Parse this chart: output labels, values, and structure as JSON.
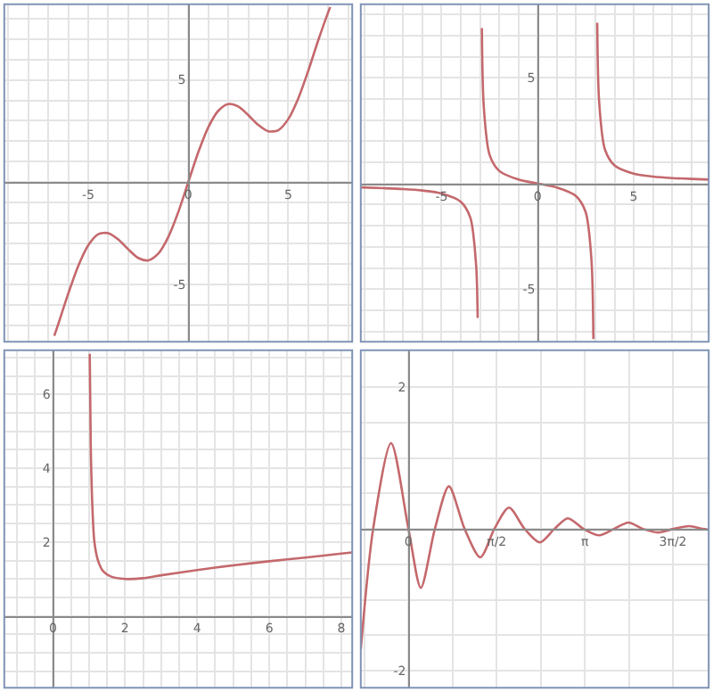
{
  "chart_data": [
    {
      "type": "line",
      "grid": true,
      "xlim": [
        -9.2,
        8.2
      ],
      "ylim": [
        -7.8,
        8.7
      ],
      "xticks": [
        {
          "value": -9,
          "label": null
        },
        {
          "value": -8,
          "label": null
        },
        {
          "value": -7,
          "label": null
        },
        {
          "value": -6,
          "label": null
        },
        -5,
        {
          "value": -4,
          "label": null
        },
        {
          "value": -3,
          "label": null
        },
        {
          "value": -2,
          "label": null
        },
        {
          "value": -1,
          "label": null
        },
        0,
        {
          "value": 1,
          "label": null
        },
        {
          "value": 2,
          "label": null
        },
        {
          "value": 3,
          "label": null
        },
        {
          "value": 4,
          "label": null
        },
        5,
        {
          "value": 6,
          "label": null
        },
        {
          "value": 7,
          "label": null
        },
        {
          "value": 8,
          "label": null
        }
      ],
      "yticks": [
        {
          "value": -7,
          "label": null
        },
        {
          "value": -6,
          "label": null
        },
        -5,
        {
          "value": -4,
          "label": null
        },
        {
          "value": -3,
          "label": null
        },
        {
          "value": -2,
          "label": null
        },
        {
          "value": -1,
          "label": null
        },
        {
          "value": 0,
          "label": null
        },
        {
          "value": 1,
          "label": null
        },
        {
          "value": 2,
          "label": null
        },
        {
          "value": 3,
          "label": null
        },
        {
          "value": 4,
          "label": null
        },
        5,
        {
          "value": 6,
          "label": null
        },
        {
          "value": 7,
          "label": null
        },
        {
          "value": 8,
          "label": null
        }
      ],
      "series": [
        {
          "color": "#c4686c",
          "x": [
            -6.7,
            -6.5,
            -6,
            -5.5,
            -5,
            -4.5,
            -4,
            -3.5,
            -3,
            -2.5,
            -2,
            -1.5,
            -1,
            -0.5,
            0,
            0.5,
            1,
            1.5,
            2,
            2.5,
            3,
            3.5,
            4,
            4.5,
            5,
            5.5,
            6,
            6.5,
            7,
            7.1
          ],
          "values": [
            -7.51,
            -6.93,
            -5.44,
            -4.09,
            -3.08,
            -2.54,
            -2.49,
            -2.8,
            -3.28,
            -3.7,
            -3.82,
            -3.49,
            -2.68,
            -1.46,
            0,
            1.46,
            2.68,
            3.49,
            3.82,
            3.7,
            3.28,
            2.8,
            2.49,
            2.54,
            3.08,
            4.09,
            5.44,
            6.93,
            8.31,
            8.56
          ]
        }
      ]
    },
    {
      "type": "line",
      "grid": true,
      "xlim": [
        -9.2,
        8.9
      ],
      "ylim": [
        -7.5,
        8.5
      ],
      "xticks": [
        {
          "value": -9,
          "label": null
        },
        {
          "value": -8,
          "label": null
        },
        {
          "value": -7,
          "label": null
        },
        {
          "value": -6,
          "label": null
        },
        -5,
        {
          "value": -4,
          "label": null
        },
        {
          "value": -3,
          "label": null
        },
        {
          "value": -2,
          "label": null
        },
        {
          "value": -1,
          "label": null
        },
        0,
        {
          "value": 1,
          "label": null
        },
        {
          "value": 2,
          "label": null
        },
        {
          "value": 3,
          "label": null
        },
        {
          "value": 4,
          "label": null
        },
        5,
        {
          "value": 6,
          "label": null
        },
        {
          "value": 7,
          "label": null
        },
        {
          "value": 8,
          "label": null
        }
      ],
      "yticks": [
        {
          "value": -7,
          "label": null
        },
        {
          "value": -6,
          "label": null
        },
        -5,
        {
          "value": -4,
          "label": null
        },
        {
          "value": -3,
          "label": null
        },
        {
          "value": -2,
          "label": null
        },
        {
          "value": -1,
          "label": null
        },
        {
          "value": 0,
          "label": null
        },
        {
          "value": 1,
          "label": null
        },
        {
          "value": 2,
          "label": null
        },
        {
          "value": 3,
          "label": null
        },
        {
          "value": 4,
          "label": null
        },
        5,
        {
          "value": 6,
          "label": null
        },
        {
          "value": 7,
          "label": null
        },
        {
          "value": 8,
          "label": null
        }
      ],
      "series": [
        {
          "color": "#c4686c",
          "x": [
            -9.2,
            -8,
            -7,
            -6,
            -5,
            -4,
            -3.5,
            -3.2,
            -3.12,
            -3.0,
            -2.9,
            -2.8,
            -2.5,
            -2,
            -1,
            0,
            1,
            2,
            2.5,
            2.8,
            2.9,
            3.0,
            3.1,
            3.2,
            3.5,
            4,
            5,
            6,
            7,
            8,
            8.9
          ],
          "values": [
            -0.18,
            -0.22,
            -0.26,
            -0.33,
            -0.47,
            -0.86,
            -1.62,
            -3.87,
            -6.37,
            null,
            7.37,
            3.62,
            1.36,
            0.6,
            0.19,
            0,
            -0.19,
            -0.6,
            -1.36,
            -3.62,
            -7.37,
            null,
            7.62,
            3.87,
            1.62,
            0.86,
            0.47,
            0.33,
            0.26,
            0.22,
            0.19
          ]
        }
      ]
    },
    {
      "type": "line",
      "grid": true,
      "xlim": [
        -1.35,
        8.3
      ],
      "ylim": [
        -1.95,
        7.2
      ],
      "xticks": [
        {
          "value": -1,
          "label": null
        },
        {
          "value": -0.5,
          "label": null
        },
        0,
        {
          "value": 0.5,
          "label": null
        },
        {
          "value": 1,
          "label": null
        },
        {
          "value": 1.5,
          "label": null
        },
        2,
        {
          "value": 2.5,
          "label": null
        },
        {
          "value": 3,
          "label": null
        },
        {
          "value": 3.5,
          "label": null
        },
        4,
        {
          "value": 4.5,
          "label": null
        },
        {
          "value": 5,
          "label": null
        },
        {
          "value": 5.5,
          "label": null
        },
        6,
        {
          "value": 6.5,
          "label": null
        },
        {
          "value": 7,
          "label": null
        },
        {
          "value": 7.5,
          "label": null
        },
        8
      ],
      "yticks": [
        {
          "value": -1.5,
          "label": null
        },
        {
          "value": -1,
          "label": null
        },
        {
          "value": -0.5,
          "label": null
        },
        {
          "value": 0,
          "label": null
        },
        {
          "value": 0.5,
          "label": null
        },
        {
          "value": 1,
          "label": null
        },
        {
          "value": 1.5,
          "label": null
        },
        2,
        {
          "value": 2.5,
          "label": null
        },
        {
          "value": 3,
          "label": null
        },
        {
          "value": 3.5,
          "label": null
        },
        4,
        {
          "value": 4.5,
          "label": null
        },
        {
          "value": 5,
          "label": null
        },
        {
          "value": 5.5,
          "label": null
        },
        6,
        {
          "value": 6.5,
          "label": null
        },
        {
          "value": 7,
          "label": null
        }
      ],
      "series": [
        {
          "color": "#c4686c",
          "x": [
            1.02,
            1.05,
            1.1,
            1.15,
            1.25,
            1.4,
            1.6,
            2.0,
            2.5,
            3,
            4,
            5,
            6,
            7,
            8,
            8.3
          ],
          "values": [
            7.1,
            4.5,
            2.8,
            2.0,
            1.5,
            1.2,
            1.07,
            1.0,
            1.02,
            1.1,
            1.24,
            1.37,
            1.48,
            1.58,
            1.69,
            1.72
          ]
        }
      ]
    },
    {
      "type": "line",
      "grid": true,
      "xlim": [
        -0.85,
        5.35
      ],
      "ylim": [
        -2.24,
        2.52
      ],
      "xticks": [
        {
          "value": -0.785,
          "label": null
        },
        0,
        {
          "value": 0.785,
          "label": null
        },
        {
          "value": 1.571,
          "label": "π/2"
        },
        {
          "value": 2.356,
          "label": null
        },
        {
          "value": 3.142,
          "label": "π"
        },
        {
          "value": 3.927,
          "label": null
        },
        {
          "value": 4.712,
          "label": "3π/2"
        }
      ],
      "yticks": [
        -2,
        {
          "value": -1.5,
          "label": null
        },
        {
          "value": -1,
          "label": null
        },
        {
          "value": -0.5,
          "label": null
        },
        {
          "value": 0,
          "label": null
        },
        {
          "value": 0.5,
          "label": null
        },
        {
          "value": 1,
          "label": null
        },
        {
          "value": 1.5,
          "label": null
        },
        2,
        {
          "value": 2.5,
          "label": null
        }
      ],
      "series": [
        {
          "color": "#c4686c",
          "x": [
            -0.85,
            -0.63,
            -0.31,
            0,
            0.22,
            0.47,
            0.72,
            1.0,
            1.28,
            1.53,
            1.79,
            2.07,
            2.34,
            2.6,
            2.84,
            3.12,
            3.4,
            3.66,
            3.92,
            4.18,
            4.45,
            4.72,
            5.0,
            5.25,
            5.33
          ],
          "values": [
            -1.7,
            0,
            1.21,
            0,
            -0.83,
            0,
            0.6,
            0,
            -0.4,
            0,
            0.3,
            0,
            -0.19,
            0,
            0.15,
            0,
            -0.09,
            0,
            0.09,
            0,
            -0.05,
            0,
            0.04,
            0,
            -0.01
          ]
        }
      ]
    }
  ]
}
